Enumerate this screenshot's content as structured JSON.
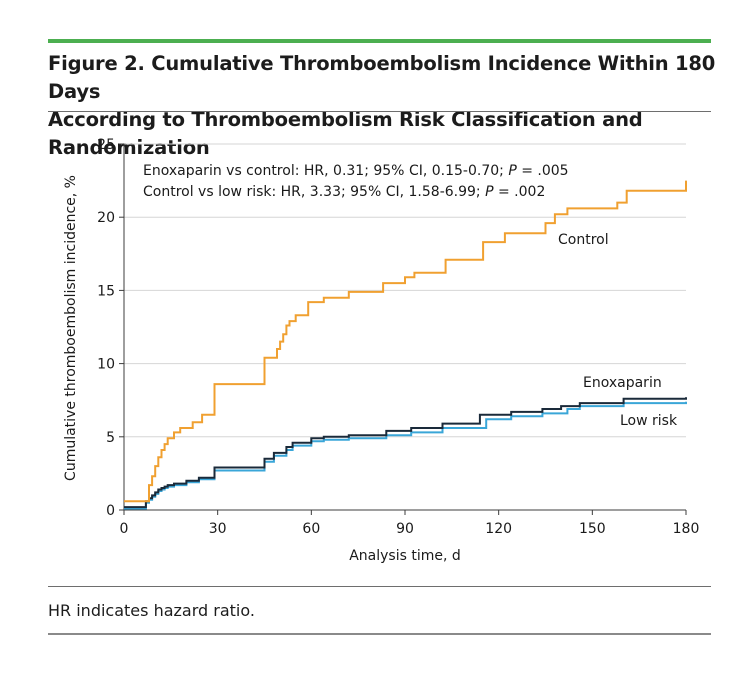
{
  "figure": {
    "title_line1": "Figure 2. Cumulative Thromboembolism Incidence Within 180 Days",
    "title_line2": "According to Thromboembolism Risk Classification and Randomization",
    "footnote": "HR indicates hazard ratio."
  },
  "colors": {
    "accent_rule": "#4caf50",
    "control": "#f0a030",
    "enoxaparin": "#1a2a3a",
    "low_risk": "#3aa6d8"
  },
  "chart_data": {
    "type": "line",
    "step": true,
    "xlabel": "Analysis time, d",
    "ylabel": "Cumulative thromboembolism incidence, %",
    "xlim": [
      0,
      180
    ],
    "ylim": [
      0,
      25
    ],
    "xticks": [
      0,
      30,
      60,
      90,
      120,
      150,
      180
    ],
    "yticks": [
      0,
      5,
      10,
      15,
      20,
      25
    ],
    "grid": "horizontal",
    "annotations": {
      "line1_prefix": "Enoxaparin vs control: HR, 0.31; 95% CI, 0.15-0.70; ",
      "line1_p": "P",
      "line1_suffix": " = .005",
      "line2_prefix": "Control vs low risk: HR, 3.33; 95% CI, 1.58-6.99; ",
      "line2_p": "P",
      "line2_suffix": " = .002"
    },
    "series": [
      {
        "name": "Control",
        "color": "#f0a030",
        "x": [
          0,
          8,
          9,
          10,
          11,
          12,
          13,
          14,
          16,
          18,
          22,
          25,
          29,
          45,
          46,
          49,
          50,
          51,
          52,
          53,
          55,
          59,
          64,
          72,
          83,
          90,
          93,
          103,
          115,
          122,
          135,
          138,
          142,
          158,
          161,
          180
        ],
        "y": [
          0.6,
          1.7,
          2.3,
          3.0,
          3.6,
          4.1,
          4.5,
          4.9,
          5.3,
          5.6,
          6.0,
          6.5,
          8.6,
          10.4,
          10.4,
          11.0,
          11.5,
          12.0,
          12.6,
          12.9,
          13.3,
          14.2,
          14.5,
          14.9,
          15.5,
          15.9,
          16.2,
          17.1,
          18.3,
          18.9,
          19.6,
          20.2,
          20.6,
          21.0,
          21.8,
          22.5
        ]
      },
      {
        "name": "Enoxaparin",
        "color": "#1a2a3a",
        "x": [
          0,
          7,
          8,
          9,
          10,
          11,
          12,
          13,
          14,
          16,
          20,
          24,
          29,
          45,
          48,
          52,
          54,
          60,
          64,
          72,
          84,
          92,
          102,
          114,
          124,
          134,
          140,
          146,
          160,
          180
        ],
        "y": [
          0.2,
          0.6,
          0.8,
          1.0,
          1.2,
          1.4,
          1.5,
          1.6,
          1.7,
          1.8,
          2.0,
          2.2,
          2.9,
          3.5,
          3.9,
          4.3,
          4.6,
          4.9,
          5.0,
          5.1,
          5.4,
          5.6,
          5.9,
          6.5,
          6.7,
          6.9,
          7.1,
          7.3,
          7.6,
          7.7
        ]
      },
      {
        "name": "Low risk",
        "color": "#3aa6d8",
        "x": [
          0,
          7,
          8,
          9,
          10,
          11,
          12,
          13,
          14,
          16,
          20,
          24,
          29,
          45,
          48,
          52,
          54,
          60,
          64,
          72,
          84,
          92,
          102,
          116,
          124,
          134,
          142,
          146,
          160,
          180
        ],
        "y": [
          0.1,
          0.5,
          0.7,
          0.9,
          1.1,
          1.3,
          1.4,
          1.5,
          1.6,
          1.7,
          1.9,
          2.1,
          2.7,
          3.3,
          3.7,
          4.1,
          4.4,
          4.7,
          4.8,
          4.9,
          5.1,
          5.3,
          5.6,
          6.2,
          6.4,
          6.6,
          6.9,
          7.1,
          7.3,
          7.4
        ]
      }
    ],
    "series_labels": [
      "Control",
      "Enoxaparin",
      "Low risk"
    ]
  }
}
